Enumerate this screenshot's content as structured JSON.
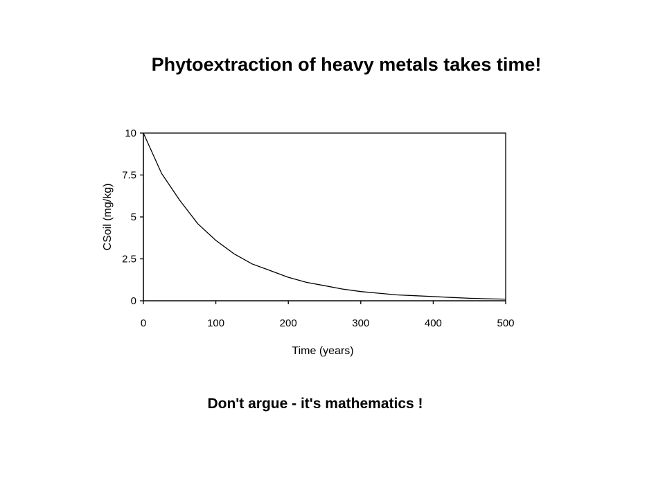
{
  "slide": {
    "title": "Phytoextraction of heavy metals takes time!",
    "footer": "Don't argue - it's mathematics !"
  },
  "chart_data": {
    "type": "line",
    "title": "",
    "xlabel": "Time (years)",
    "ylabel": "CSoil (mg/kg)",
    "xlim": [
      0,
      500
    ],
    "ylim": [
      0,
      10
    ],
    "x_ticks": [
      0,
      100,
      200,
      300,
      400,
      500
    ],
    "y_ticks": [
      0,
      2.5,
      5,
      7.5,
      10
    ],
    "y_tick_labels": [
      "0",
      "2.5",
      "5",
      "7.5",
      "10"
    ],
    "grid": false,
    "legend": "none",
    "line_color": "#000000",
    "series": [
      {
        "x": [
          0,
          25,
          50,
          75,
          100,
          125,
          150,
          175,
          200,
          225,
          250,
          275,
          300,
          325,
          350,
          375,
          400,
          425,
          450,
          475,
          500
        ],
        "values": [
          10,
          7.6,
          6.0,
          4.6,
          3.6,
          2.8,
          2.2,
          1.8,
          1.4,
          1.1,
          0.9,
          0.7,
          0.55,
          0.45,
          0.35,
          0.3,
          0.25,
          0.2,
          0.15,
          0.12,
          0.1
        ]
      }
    ]
  }
}
